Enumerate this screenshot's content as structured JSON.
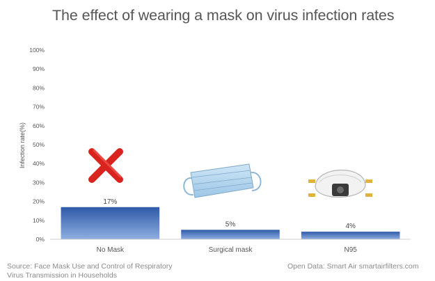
{
  "chart_data": {
    "type": "bar",
    "title": "The effect of wearing a mask on virus infection rates",
    "ylabel": "Infection rate(%)",
    "xlabel": "",
    "categories": [
      "No Mask",
      "Surgical mask",
      "N95"
    ],
    "values": [
      17,
      5,
      4
    ],
    "data_labels": [
      "17%",
      "5%",
      "4%"
    ],
    "ylim": [
      0,
      100
    ],
    "yticks": [
      0,
      10,
      20,
      30,
      40,
      50,
      60,
      70,
      80,
      90,
      100
    ],
    "ytick_labels": [
      "0%",
      "10%",
      "20%",
      "30%",
      "40%",
      "50%",
      "60%",
      "70%",
      "80%",
      "90%",
      "100%"
    ],
    "grid": false,
    "bar_color_top": "#2f5aa8",
    "bar_color_bottom": "#8faee0",
    "icons": [
      "red-x-icon",
      "surgical-mask-icon",
      "n95-respirator-icon"
    ]
  },
  "footer": {
    "source": "Source: Face Mask Use and Control of Respiratory Virus Transmission in Households",
    "credit": "Open Data: Smart Air smartairfilters.com"
  }
}
